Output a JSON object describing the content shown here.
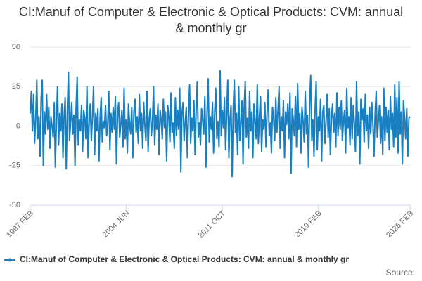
{
  "chart_data": {
    "type": "line",
    "title": "CI:Manuf of Computer & Electronic & Optical Products: CVM: annual & monthly gr",
    "source": "Source:",
    "categories": [
      "1997 FEB",
      null,
      null,
      null,
      null,
      null,
      null,
      null,
      null,
      null,
      null,
      null,
      null,
      null,
      null,
      null,
      null,
      null,
      null,
      null,
      null,
      null,
      null,
      null,
      null,
      null,
      null,
      null,
      null,
      null,
      null,
      null,
      null,
      null,
      null,
      null,
      null,
      null,
      null,
      null,
      null,
      null,
      null,
      null,
      null,
      null,
      null,
      null,
      null,
      null,
      null,
      null,
      null,
      null,
      null,
      null,
      null,
      null,
      null,
      null,
      null,
      null,
      null,
      null,
      null,
      null,
      null,
      null,
      null,
      null,
      null,
      null,
      null,
      null,
      null,
      null,
      null,
      null,
      null,
      null,
      null,
      null,
      null,
      null,
      null,
      null,
      null,
      null,
      "2004 JUN",
      null,
      null,
      null,
      null,
      null,
      null,
      null,
      null,
      null,
      null,
      null,
      null,
      null,
      null,
      null,
      null,
      null,
      null,
      null,
      null,
      null,
      null,
      null,
      null,
      null,
      null,
      null,
      null,
      null,
      null,
      null,
      null,
      null,
      null,
      null,
      null,
      null,
      null,
      null,
      null,
      null,
      null,
      null,
      null,
      null,
      null,
      null,
      null,
      null,
      null,
      null,
      null,
      null,
      null,
      null,
      null,
      null,
      null,
      null,
      null,
      null,
      null,
      null,
      null,
      null,
      null,
      null,
      null,
      null,
      null,
      null,
      null,
      null,
      null,
      null,
      null,
      null,
      null,
      null,
      null,
      null,
      null,
      null,
      null,
      null,
      null,
      null,
      "2011 OCT",
      null,
      null,
      null,
      null,
      null,
      null,
      null,
      null,
      null,
      null,
      null,
      null,
      null,
      null,
      null,
      null,
      null,
      null,
      null,
      null,
      null,
      null,
      null,
      null,
      null,
      null,
      null,
      null,
      null,
      null,
      null,
      null,
      null,
      null,
      null,
      null,
      null,
      null,
      null,
      null,
      null,
      null,
      null,
      null,
      null,
      null,
      null,
      null,
      null,
      null,
      null,
      null,
      null,
      null,
      null,
      null,
      null,
      null,
      null,
      null,
      null,
      null,
      null,
      null,
      null,
      null,
      null,
      null,
      null,
      null,
      null,
      null,
      null,
      null,
      null,
      null,
      null,
      null,
      null,
      null,
      null,
      null,
      null,
      null,
      null,
      null,
      null,
      "2019 FEB",
      null,
      null,
      null,
      null,
      null,
      null,
      null,
      null,
      null,
      null,
      null,
      null,
      null,
      null,
      null,
      null,
      null,
      null,
      null,
      null,
      null,
      null,
      null,
      null,
      null,
      null,
      null,
      null,
      null,
      null,
      null,
      null,
      null,
      null,
      null,
      null,
      null,
      null,
      null,
      null,
      null,
      null,
      null,
      null,
      null,
      null,
      null,
      null,
      null,
      null,
      null,
      null,
      null,
      null,
      null,
      null,
      null,
      null,
      null,
      null,
      null,
      null,
      null,
      null,
      null,
      null,
      null,
      null,
      null,
      null,
      null,
      null,
      null,
      null,
      null,
      null,
      null,
      null,
      null,
      null,
      null,
      null,
      null,
      "2026 FEB"
    ],
    "series": [
      {
        "name": "CI:Manuf of Computer & Electronic & Optical Products: CVM: annual & monthly gr",
        "color": "#1a7fc1",
        "values": [
          8,
          22,
          -3,
          20,
          -11,
          4,
          29,
          -8,
          6,
          -19,
          18,
          29,
          -25,
          9,
          -5,
          20,
          -2,
          12,
          -14,
          6,
          0,
          -7,
          15,
          -26,
          3,
          25,
          -12,
          8,
          -3,
          14,
          -20,
          6,
          18,
          -27,
          10,
          34,
          -9,
          2,
          15,
          -5,
          7,
          -25,
          11,
          31,
          -12,
          4,
          -3,
          13,
          -16,
          10,
          5,
          -8,
          25,
          -20,
          2,
          14,
          -9,
          6,
          25,
          -18,
          8,
          -3,
          11,
          -22,
          5,
          18,
          -10,
          3,
          -1,
          13,
          -6,
          2,
          22,
          -15,
          8,
          -4,
          12,
          -2,
          19,
          -24,
          6,
          15,
          -7,
          1,
          10,
          -13,
          24,
          -8,
          4,
          -17,
          14,
          2,
          -5,
          12,
          -20,
          9,
          17,
          -4,
          6,
          -11,
          20,
          -3,
          8,
          -14,
          15,
          1,
          -9,
          22,
          -16,
          5,
          11,
          -6,
          3,
          25,
          -12,
          7,
          -2,
          14,
          -18,
          10,
          4,
          -8,
          17,
          -1,
          9,
          -22,
          13,
          6,
          -10,
          21,
          -4,
          2,
          -14,
          18,
          -6,
          10,
          -2,
          24,
          -29,
          8,
          15,
          -9,
          3,
          12,
          -20,
          7,
          26,
          -11,
          5,
          -3,
          16,
          -18,
          9,
          28,
          -7,
          2,
          -12,
          11,
          4,
          -5,
          19,
          -26,
          8,
          30,
          -10,
          6,
          -2,
          15,
          -17,
          9,
          24,
          -8,
          3,
          -13,
          35,
          -6,
          10,
          -1,
          18,
          -15,
          7,
          29,
          -20,
          4,
          13,
          -32,
          11,
          29,
          -4,
          8,
          -18,
          25,
          -9,
          2,
          16,
          -24,
          12,
          28,
          -7,
          5,
          -14,
          22,
          -3,
          9,
          -20,
          14,
          3,
          -8,
          26,
          -11,
          6,
          19,
          -16,
          4,
          -2,
          15,
          -13,
          8,
          23,
          -6,
          2,
          -17,
          12,
          5,
          -9,
          18,
          -4,
          10,
          25,
          -14,
          6,
          -3,
          16,
          -20,
          9,
          1,
          14,
          -8,
          21,
          -30,
          11,
          4,
          -6,
          19,
          -13,
          27,
          -2,
          8,
          -17,
          12,
          3,
          -10,
          22,
          -5,
          7,
          -26,
          15,
          32,
          -9,
          4,
          -19,
          10,
          28,
          -15,
          6,
          -3,
          17,
          -22,
          9,
          13,
          -11,
          2,
          20,
          -7,
          11,
          -18,
          5,
          14,
          -4,
          8,
          -13,
          21,
          -6,
          12,
          -2,
          16,
          -9,
          3,
          10,
          -17,
          24,
          -1,
          6,
          -12,
          18,
          -8,
          13,
          2,
          -16,
          28,
          -6,
          9,
          -24,
          17,
          4,
          11,
          -10,
          20,
          -3,
          7,
          -14,
          12,
          -5,
          15,
          1,
          -19,
          8,
          22,
          -7,
          3,
          13,
          -11,
          6,
          -18,
          24,
          -9,
          12,
          -4,
          10,
          -15,
          19,
          -2,
          8,
          -13,
          26,
          -7,
          18,
          -17,
          28,
          -5,
          9,
          -24,
          16,
          6,
          -8,
          11,
          -19,
          5,
          6
        ]
      }
    ],
    "ylim": [
      -50,
      50
    ],
    "yticks": [
      -50,
      -25,
      0,
      25,
      50
    ],
    "grid": true
  }
}
